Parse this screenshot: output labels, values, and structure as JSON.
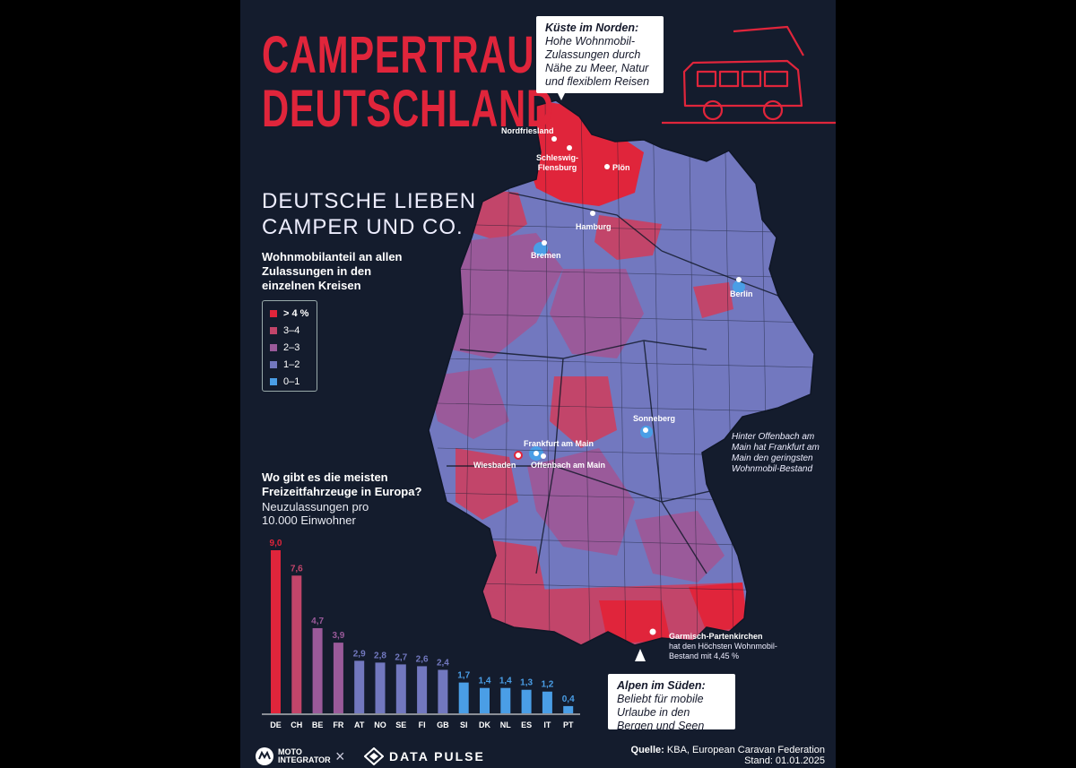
{
  "title_line1": "CAMPERTRAUM",
  "title_line2": "DEUTSCHLAND",
  "subtitle_line1": "DEUTSCHE LIEBEN",
  "subtitle_line2": "CAMPER UND CO.",
  "map_heading": "Wohnmobilanteil an allen Zulassungen in den einzelnen Kreisen",
  "legend": [
    {
      "label": "> 4 %",
      "color": "#e0253b",
      "bold": true
    },
    {
      "label": "3–4",
      "color": "#c2456a"
    },
    {
      "label": "2–3",
      "color": "#9a5a9a"
    },
    {
      "label": "1–2",
      "color": "#7278bf"
    },
    {
      "label": "0–1",
      "color": "#4a9ee6"
    }
  ],
  "callout_north": {
    "title": "Küste im Norden:",
    "text": "Hohe Wohnmobil-Zulassungen durch Nähe zu Meer, Natur und flexiblem Reisen"
  },
  "callout_south": {
    "title": "Alpen im Süden:",
    "text": "Beliebt für mobile Urlaube in den Bergen und Seen"
  },
  "cities": {
    "nordfriesland": "Nordfriesland",
    "schleswig": "Schleswig-",
    "flensburg": "Flensburg",
    "ploen": "Plön",
    "hamburg": "Hamburg",
    "bremen": "Bremen",
    "berlin": "Berlin",
    "sonneberg": "Sonneberg",
    "frankfurt": "Frankfurt am Main",
    "wiesbaden": "Wiesbaden",
    "offenbach": "Offenbach am Main",
    "garmisch": "Garmisch-Partenkirchen"
  },
  "annotation_offenbach": "Hinter Offenbach am Main hat  Frankfurt am Main den  geringsten Wohnmobil-Bestand",
  "annotation_garmisch": "hat den Höchsten Wohnmobil-Bestand mit 4,45 %",
  "bar_heading": "Wo gibt es die meisten Freizeitfahrzeuge in Europa?",
  "bar_subheading": "Neuzulassungen pro 10.000 Einwohner",
  "chart_data": {
    "type": "bar",
    "title": "Wo gibt es die meisten Freizeitfahrzeuge in Europa?",
    "subtitle": "Neuzulassungen pro 10.000 Einwohner",
    "categories": [
      "DE",
      "CH",
      "BE",
      "FR",
      "AT",
      "NO",
      "SE",
      "FI",
      "GB",
      "SI",
      "DK",
      "NL",
      "ES",
      "IT",
      "PT"
    ],
    "values": [
      9.0,
      7.6,
      4.7,
      3.9,
      2.9,
      2.8,
      2.7,
      2.6,
      2.4,
      1.7,
      1.4,
      1.4,
      1.3,
      1.2,
      0.4
    ],
    "value_labels": [
      "9,0",
      "7,6",
      "4,7",
      "3,9",
      "2,9",
      "2,8",
      "2,7",
      "2,6",
      "2,4",
      "1,7",
      "1,4",
      "1,4",
      "1,3",
      "1,2",
      "0,4"
    ],
    "colors": [
      "#e0253b",
      "#c2456a",
      "#9a5a9a",
      "#9a5a9a",
      "#7278bf",
      "#7278bf",
      "#7278bf",
      "#7278bf",
      "#7278bf",
      "#4a9ee6",
      "#4a9ee6",
      "#4a9ee6",
      "#4a9ee6",
      "#4a9ee6",
      "#4a9ee6"
    ],
    "ylim": [
      0,
      9
    ]
  },
  "logo_motointegrator_1": "MOTO",
  "logo_motointegrator_2": "INTEGRATOR",
  "logo_separator": "×",
  "logo_datapulse": "DATA PULSE",
  "source_label": "Quelle:",
  "source_text": "KBA, European Caravan Federation",
  "stand": "Stand: 01.01.2025"
}
